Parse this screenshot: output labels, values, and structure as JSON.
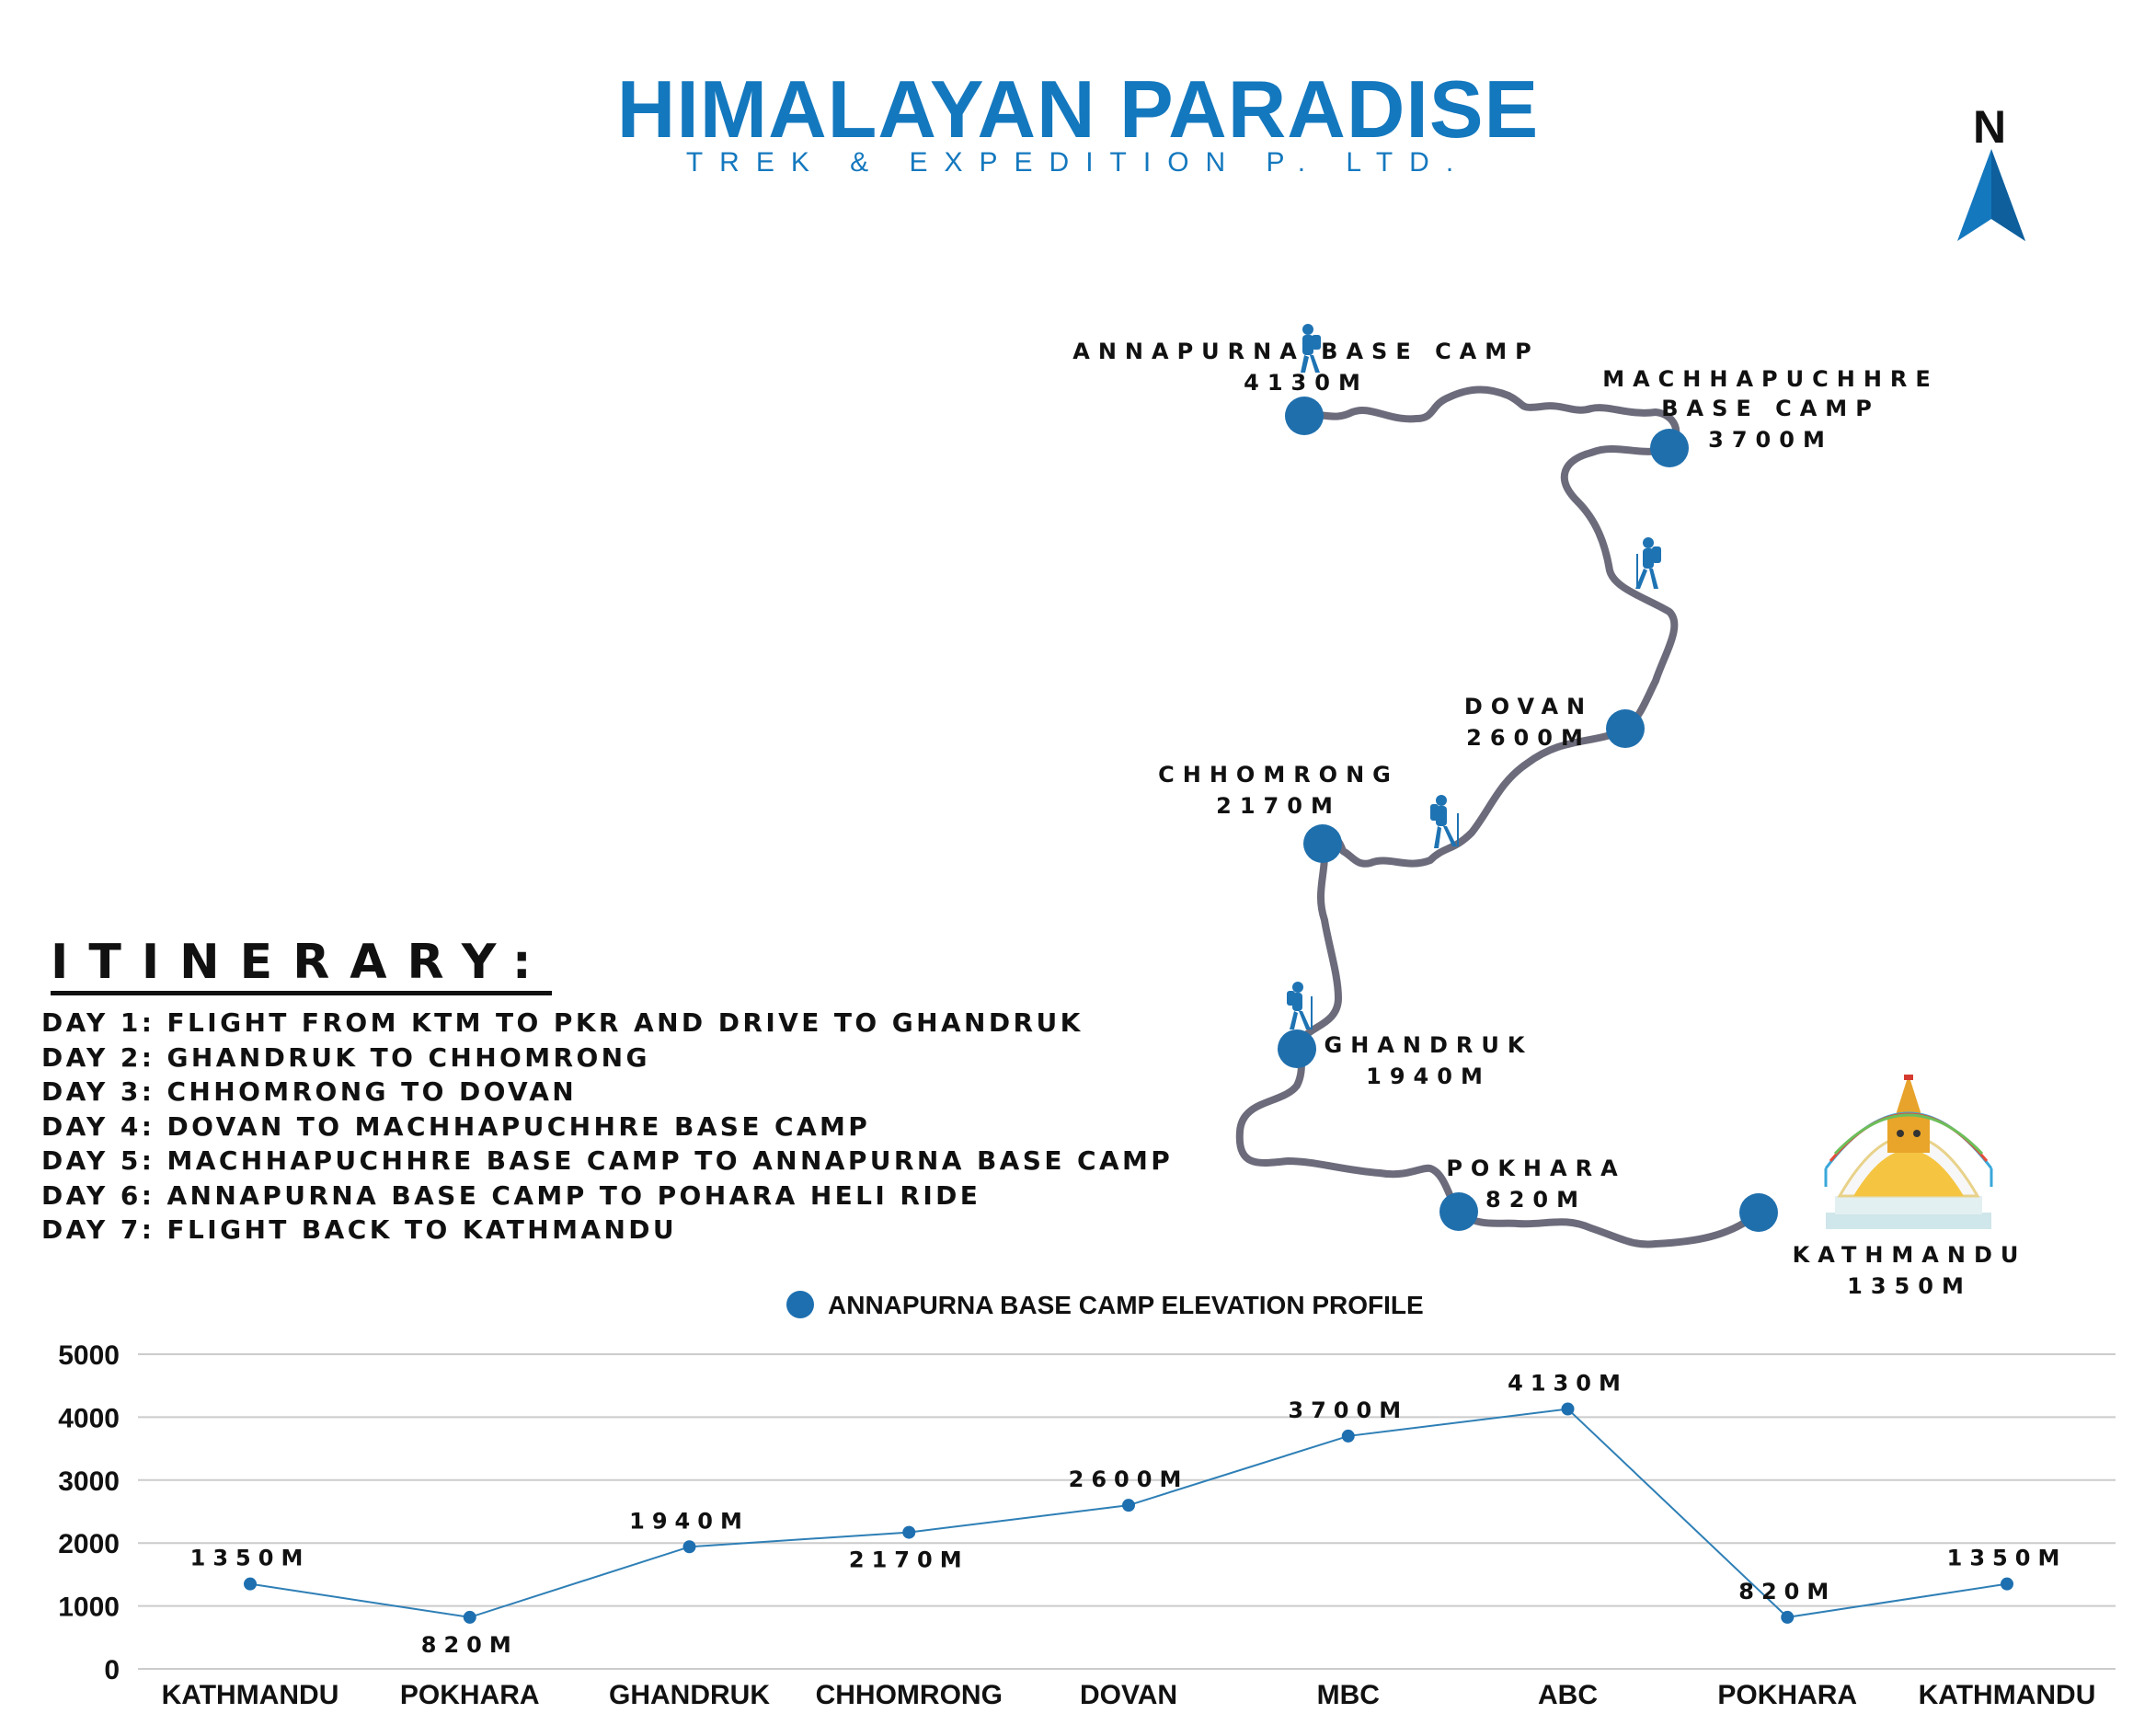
{
  "brand": {
    "title": "HIMALAYAN PARADISE",
    "subtitle": "TREK & EXPEDITION P. LTD."
  },
  "compass": {
    "label": "N"
  },
  "route": {
    "stops": [
      {
        "name": "ANNAPURNA BASE CAMP",
        "elevation": "4130M"
      },
      {
        "name": "MACHHAPUCHHRE BASE CAMP",
        "elevation": "3700M"
      },
      {
        "name": "DOVAN",
        "elevation": "2600M"
      },
      {
        "name": "CHHOMRONG",
        "elevation": "2170M"
      },
      {
        "name": "GHANDRUK",
        "elevation": "1940M"
      },
      {
        "name": "POKHARA",
        "elevation": "820M"
      },
      {
        "name": "KATHMANDU",
        "elevation": "1350M"
      }
    ]
  },
  "itinerary": {
    "heading": "ITINERARY:",
    "days": [
      "DAY 1: FLIGHT FROM KTM TO PKR AND DRIVE TO GHANDRUK",
      "DAY 2: GHANDRUK TO CHHOMRONG",
      "DAY 3: CHHOMRONG TO DOVAN",
      "DAY 4: DOVAN TO MACHHAPUCHHRE BASE CAMP",
      "DAY 5: MACHHAPUCHHRE BASE CAMP TO ANNAPURNA BASE CAMP",
      "DAY 6: ANNAPURNA BASE CAMP TO POHARA HELI RIDE",
      "DAY 7: FLIGHT BACK TO KATHMANDU"
    ]
  },
  "colors": {
    "brand_blue": "#1478be",
    "marker_blue": "#1f6fad",
    "trail_gray": "#6b6b7b",
    "line_blue": "#2e7fb6",
    "grid_gray": "#cccccc"
  },
  "chart_data": {
    "type": "line",
    "legend": "ANNAPURNA BASE CAMP ELEVATION PROFILE",
    "legend_position": "top-center",
    "categories": [
      "KATHMANDU",
      "POKHARA",
      "GHANDRUK",
      "CHHOMRONG",
      "DOVAN",
      "MBC",
      "ABC",
      "POKHARA",
      "KATHMANDU"
    ],
    "series": [
      {
        "name": "ANNAPURNA BASE CAMP ELEVATION PROFILE",
        "values": [
          1350,
          820,
          1940,
          2170,
          2600,
          3700,
          4130,
          820,
          1350
        ],
        "labels": [
          "1350M",
          "820M",
          "1940M",
          "2170M",
          "2600M",
          "3700M",
          "4130M",
          "820M",
          "1350M"
        ]
      }
    ],
    "ylim": [
      0,
      5000
    ],
    "yticks": [
      0,
      1000,
      2000,
      3000,
      4000,
      5000
    ],
    "grid": true,
    "xlabel": "",
    "ylabel": ""
  }
}
